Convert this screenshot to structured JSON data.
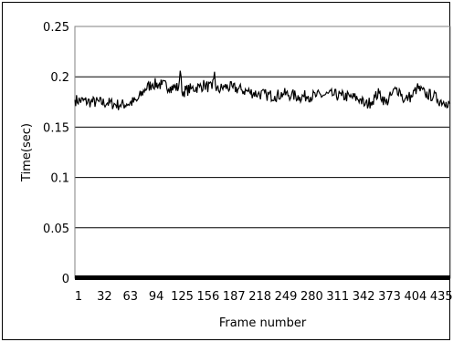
{
  "chart_data": {
    "type": "line",
    "title": "",
    "xlabel": "Frame number",
    "ylabel": "Time(sec)",
    "ylim": [
      0,
      0.25
    ],
    "xlim": [
      1,
      450
    ],
    "grid": "horizontal",
    "legend": "none",
    "y_ticks": [
      "0",
      "0.05",
      "0.1",
      "0.15",
      "0.2",
      "0.25"
    ],
    "y_tick_values": [
      0,
      0.05,
      0.1,
      0.15,
      0.2,
      0.25
    ],
    "x_ticks": [
      "1",
      "32",
      "63",
      "94",
      "125",
      "156",
      "187",
      "218",
      "249",
      "280",
      "311",
      "342",
      "373",
      "404",
      "435"
    ],
    "x_tick_values": [
      1,
      32,
      63,
      94,
      125,
      156,
      187,
      218,
      249,
      280,
      311,
      342,
      373,
      404,
      435
    ],
    "series": [
      {
        "color": "#000000",
        "x": [
          1,
          20,
          40,
          55,
          63,
          75,
          85,
          94,
          105,
          115,
          125,
          127,
          129,
          140,
          150,
          156,
          165,
          168,
          170,
          180,
          190,
          200,
          210,
          220,
          230,
          240,
          250,
          260,
          270,
          280,
          290,
          300,
          311,
          320,
          330,
          342,
          348,
          355,
          360,
          365,
          373,
          380,
          385,
          390,
          395,
          400,
          404,
          410,
          420,
          430,
          435,
          445,
          450
        ],
        "y": [
          0.177,
          0.175,
          0.174,
          0.172,
          0.173,
          0.176,
          0.188,
          0.193,
          0.192,
          0.19,
          0.189,
          0.206,
          0.185,
          0.188,
          0.19,
          0.192,
          0.188,
          0.205,
          0.186,
          0.19,
          0.189,
          0.187,
          0.185,
          0.183,
          0.182,
          0.181,
          0.183,
          0.182,
          0.18,
          0.181,
          0.181,
          0.182,
          0.182,
          0.181,
          0.18,
          0.178,
          0.172,
          0.175,
          0.18,
          0.184,
          0.174,
          0.182,
          0.188,
          0.186,
          0.176,
          0.18,
          0.18,
          0.189,
          0.183,
          0.181,
          0.177,
          0.175,
          0.174
        ]
      }
    ]
  }
}
